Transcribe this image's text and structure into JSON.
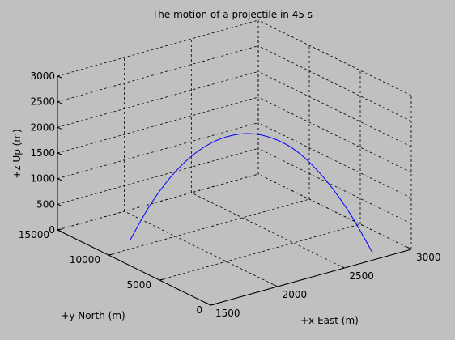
{
  "chart_data": {
    "type": "line",
    "title": "The motion of a projectile in 45 s",
    "xlabel": "+x East (m)",
    "ylabel": "+y North (m)",
    "zlabel": "+z Up (m)",
    "xlim": [
      1500,
      3000
    ],
    "ylim": [
      0,
      15000
    ],
    "zlim": [
      0,
      3000
    ],
    "xticks": [
      1500,
      2000,
      2500,
      3000
    ],
    "yticks": [
      0,
      5000,
      10000,
      15000
    ],
    "zticks": [
      0,
      500,
      1000,
      1500,
      2000,
      2500,
      3000
    ],
    "grid": true,
    "line_color": "#0000ff",
    "series": [
      {
        "points": [
          {
            "x": 1700,
            "y": 10500,
            "z": 100
          },
          {
            "x": 1790,
            "y": 9700,
            "z": 800
          },
          {
            "x": 1880,
            "y": 8900,
            "z": 1350
          },
          {
            "x": 1970,
            "y": 8100,
            "z": 1760
          },
          {
            "x": 2060,
            "y": 7300,
            "z": 2040
          },
          {
            "x": 2150,
            "y": 6500,
            "z": 2200
          },
          {
            "x": 2240,
            "y": 5700,
            "z": 2250
          },
          {
            "x": 2330,
            "y": 4900,
            "z": 2180
          },
          {
            "x": 2420,
            "y": 4100,
            "z": 2000
          },
          {
            "x": 2510,
            "y": 3300,
            "z": 1680
          },
          {
            "x": 2600,
            "y": 2500,
            "z": 1240
          },
          {
            "x": 2690,
            "y": 1700,
            "z": 680
          },
          {
            "x": 2780,
            "y": 900,
            "z": 0
          }
        ]
      }
    ]
  }
}
